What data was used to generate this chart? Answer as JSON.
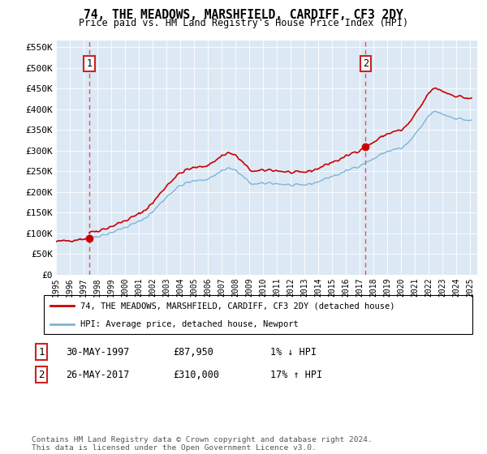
{
  "title": "74, THE MEADOWS, MARSHFIELD, CARDIFF, CF3 2DY",
  "subtitle": "Price paid vs. HM Land Registry's House Price Index (HPI)",
  "ylabel_ticks": [
    "£0",
    "£50K",
    "£100K",
    "£150K",
    "£200K",
    "£250K",
    "£300K",
    "£350K",
    "£400K",
    "£450K",
    "£500K",
    "£550K"
  ],
  "ytick_values": [
    0,
    50000,
    100000,
    150000,
    200000,
    250000,
    300000,
    350000,
    400000,
    450000,
    500000,
    550000
  ],
  "ylim": [
    0,
    565000
  ],
  "xlim_start": 1995.0,
  "xlim_end": 2025.5,
  "bg_color": "#dce9f5",
  "legend_line1": "74, THE MEADOWS, MARSHFIELD, CARDIFF, CF3 2DY (detached house)",
  "legend_line2": "HPI: Average price, detached house, Newport",
  "sale1_label": "1",
  "sale1_date": "30-MAY-1997",
  "sale1_price": "£87,950",
  "sale1_hpi": "1% ↓ HPI",
  "sale1_year": 1997.41,
  "sale1_value": 87950,
  "sale2_label": "2",
  "sale2_date": "26-MAY-2017",
  "sale2_price": "£310,000",
  "sale2_hpi": "17% ↑ HPI",
  "sale2_year": 2017.41,
  "sale2_value": 310000,
  "footer": "Contains HM Land Registry data © Crown copyright and database right 2024.\nThis data is licensed under the Open Government Licence v3.0.",
  "hpi_color": "#7eb4d8",
  "price_color": "#cc0000",
  "dot_color": "#cc0000",
  "vline_color": "#e05050",
  "xticks": [
    1995,
    1996,
    1997,
    1998,
    1999,
    2000,
    2001,
    2002,
    2003,
    2004,
    2005,
    2006,
    2007,
    2008,
    2009,
    2010,
    2011,
    2012,
    2013,
    2014,
    2015,
    2016,
    2017,
    2018,
    2019,
    2020,
    2021,
    2022,
    2023,
    2024,
    2025
  ]
}
